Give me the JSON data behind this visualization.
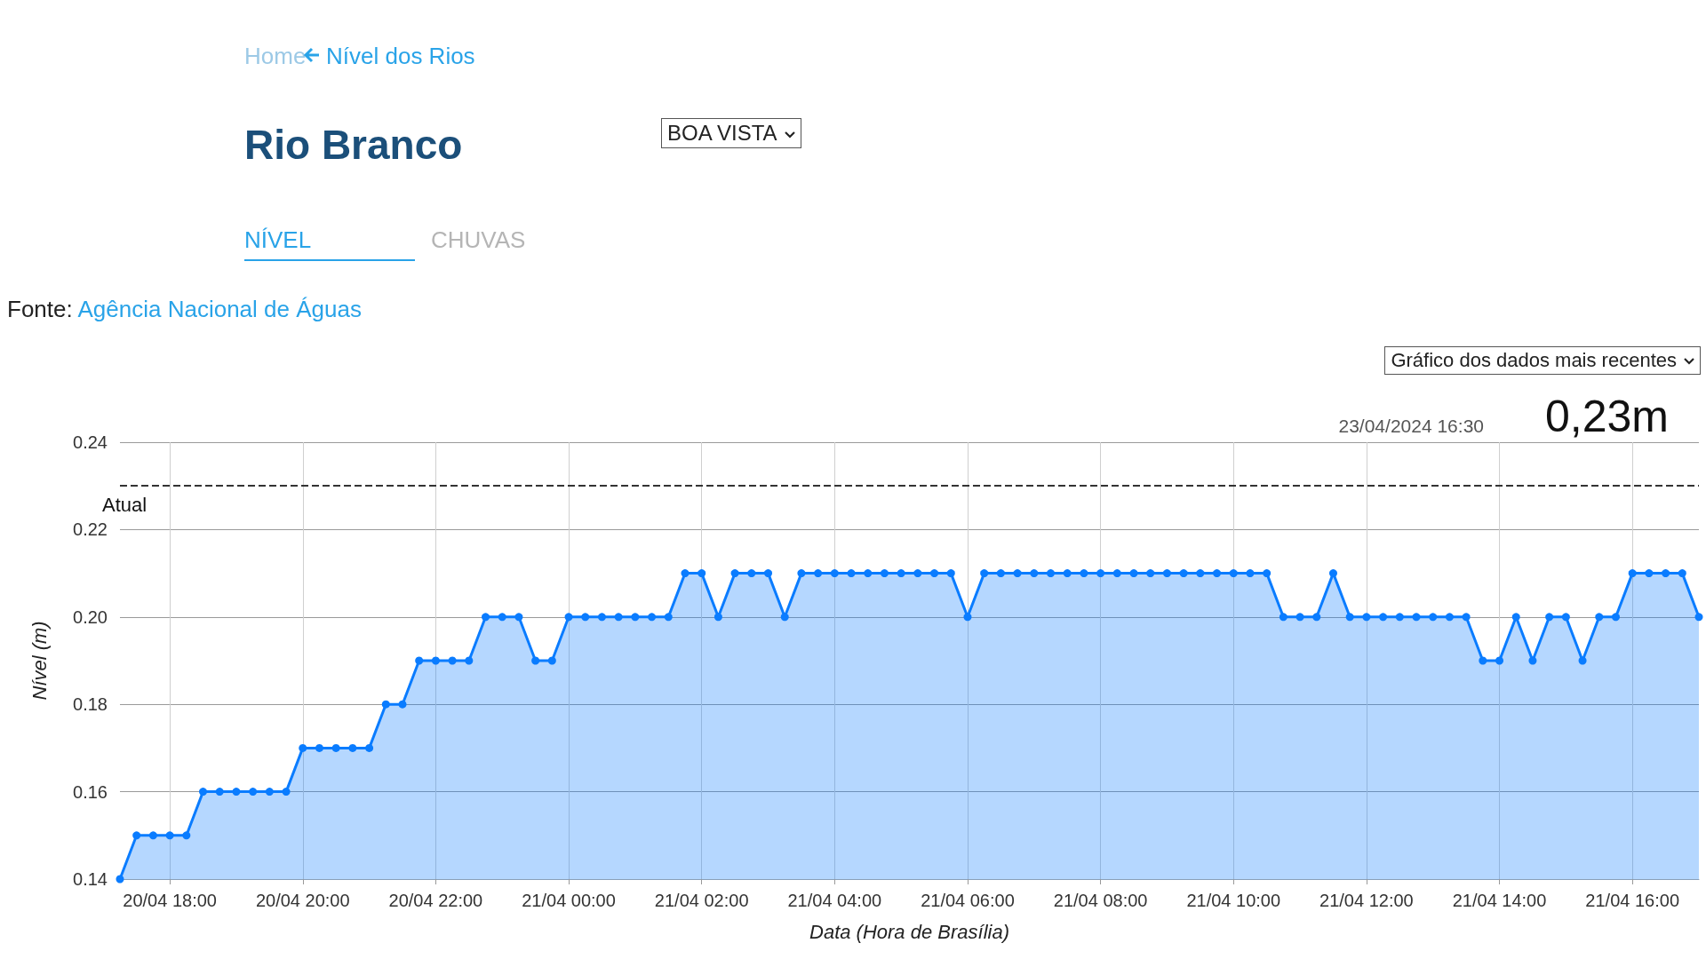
{
  "chart_data": {
    "type": "area",
    "title": "Rio Branco",
    "xlabel": "Data (Hora de Brasília)",
    "ylabel": "Nível (m)",
    "annotations": [
      "Home",
      "Nível dos Rios",
      "BOA VISTA",
      "NÍVEL",
      "CHUVAS",
      "Fonte: Agência Nacional de Águas",
      "Gráfico dos dados mais recentes",
      "23/04/2024 16:30",
      "0,23m"
    ],
    "categories": [
      null,
      null,
      null,
      "20/04 18:00",
      null,
      null,
      null,
      null,
      null,
      null,
      null,
      "20/04 20:00",
      null,
      null,
      null,
      null,
      null,
      null,
      null,
      "20/04 22:00",
      null,
      null,
      null,
      null,
      null,
      null,
      null,
      "21/04 00:00",
      null,
      null,
      null,
      null,
      null,
      null,
      null,
      "21/04 02:00",
      null,
      null,
      null,
      null,
      null,
      null,
      null,
      "21/04 04:00",
      null,
      null,
      null,
      null,
      null,
      null,
      null,
      "21/04 06:00",
      null,
      null,
      null,
      null,
      null,
      null,
      null,
      "21/04 08:00",
      null,
      null,
      null,
      null,
      null,
      null,
      null,
      "21/04 10:00",
      null,
      null,
      null,
      null,
      null,
      null,
      null,
      "21/04 12:00",
      null,
      null,
      null,
      null,
      null,
      null,
      null,
      "21/04 14:00",
      null,
      null,
      null,
      null,
      null,
      null,
      null,
      "21/04 16:00",
      null,
      null,
      null,
      null
    ],
    "series": [
      {
        "color": "#0a7cff",
        "values": [
          0.14,
          0.15,
          0.15,
          0.15,
          0.15,
          0.16,
          0.16,
          0.16,
          0.16,
          0.16,
          0.16,
          0.17,
          0.17,
          0.17,
          0.17,
          0.17,
          0.18,
          0.18,
          0.19,
          0.19,
          0.19,
          0.19,
          0.2,
          0.2,
          0.2,
          0.19,
          0.19,
          0.2,
          0.2,
          0.2,
          0.2,
          0.2,
          0.2,
          0.2,
          0.21,
          0.21,
          0.2,
          0.21,
          0.21,
          0.21,
          0.2,
          0.21,
          0.21,
          0.21,
          0.21,
          0.21,
          0.21,
          0.21,
          0.21,
          0.21,
          0.21,
          0.2,
          0.21,
          0.21,
          0.21,
          0.21,
          0.21,
          0.21,
          0.21,
          0.21,
          0.21,
          0.21,
          0.21,
          0.21,
          0.21,
          0.21,
          0.21,
          0.21,
          0.21,
          0.21,
          0.2,
          0.2,
          0.2,
          0.21,
          0.2,
          0.2,
          0.2,
          0.2,
          0.2,
          0.2,
          0.2,
          0.2,
          0.19,
          0.19,
          0.2,
          0.19,
          0.2,
          0.2,
          0.19,
          0.2,
          0.2,
          0.21,
          0.21,
          0.21,
          0.21,
          0.2
        ]
      }
    ],
    "ylim": [
      0.14,
      0.24
    ],
    "yticks": [
      {
        "value": 0.14,
        "label": "0.14"
      },
      {
        "value": 0.16,
        "label": "0.16"
      },
      {
        "value": 0.18,
        "label": "0.18"
      },
      {
        "value": 0.2,
        "label": "0.20"
      },
      {
        "value": 0.22,
        "label": "0.22"
      },
      {
        "value": 0.24,
        "label": "0.24"
      }
    ],
    "ref_lines": [
      {
        "axis": "y",
        "value": 0.23,
        "label": "Atual",
        "color": "#333333",
        "line_style": "dashed"
      }
    ],
    "grid": true,
    "marker": "circle"
  }
}
